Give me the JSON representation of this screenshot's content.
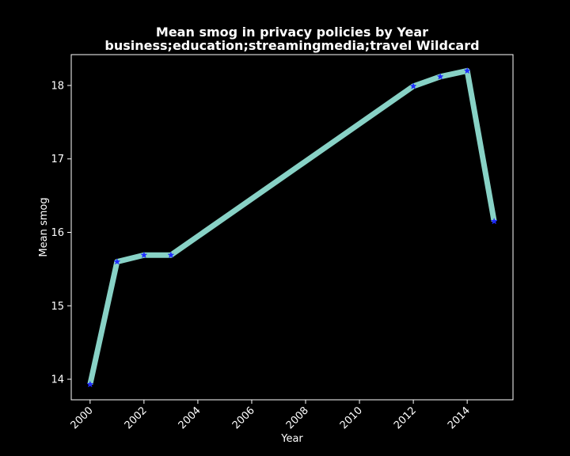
{
  "chart_data": {
    "type": "line",
    "title": "Mean smog in privacy policies by Year",
    "subtitle": "business;education;streamingmedia;travel Wildcard",
    "xlabel": "Year",
    "ylabel": "Mean smog",
    "xlim": [
      1999.3,
      2015.7
    ],
    "ylim": [
      13.72,
      18.42
    ],
    "x_ticks": [
      2000,
      2002,
      2004,
      2006,
      2008,
      2010,
      2012,
      2014
    ],
    "y_ticks": [
      14,
      15,
      16,
      17,
      18
    ],
    "grid": false,
    "legend": "none",
    "series": [
      {
        "x": [
          2000,
          2001,
          2002,
          2003,
          2012,
          2013,
          2014,
          2015
        ],
        "values": [
          13.93,
          15.6,
          15.69,
          15.69,
          17.99,
          18.12,
          18.2,
          16.15
        ],
        "line_color": "#88d2c6",
        "marker_color": "#1f2bff",
        "marker": "star"
      }
    ],
    "colors": {
      "background": "#000000",
      "axes": "#ffffff",
      "text": "#ffffff"
    }
  }
}
